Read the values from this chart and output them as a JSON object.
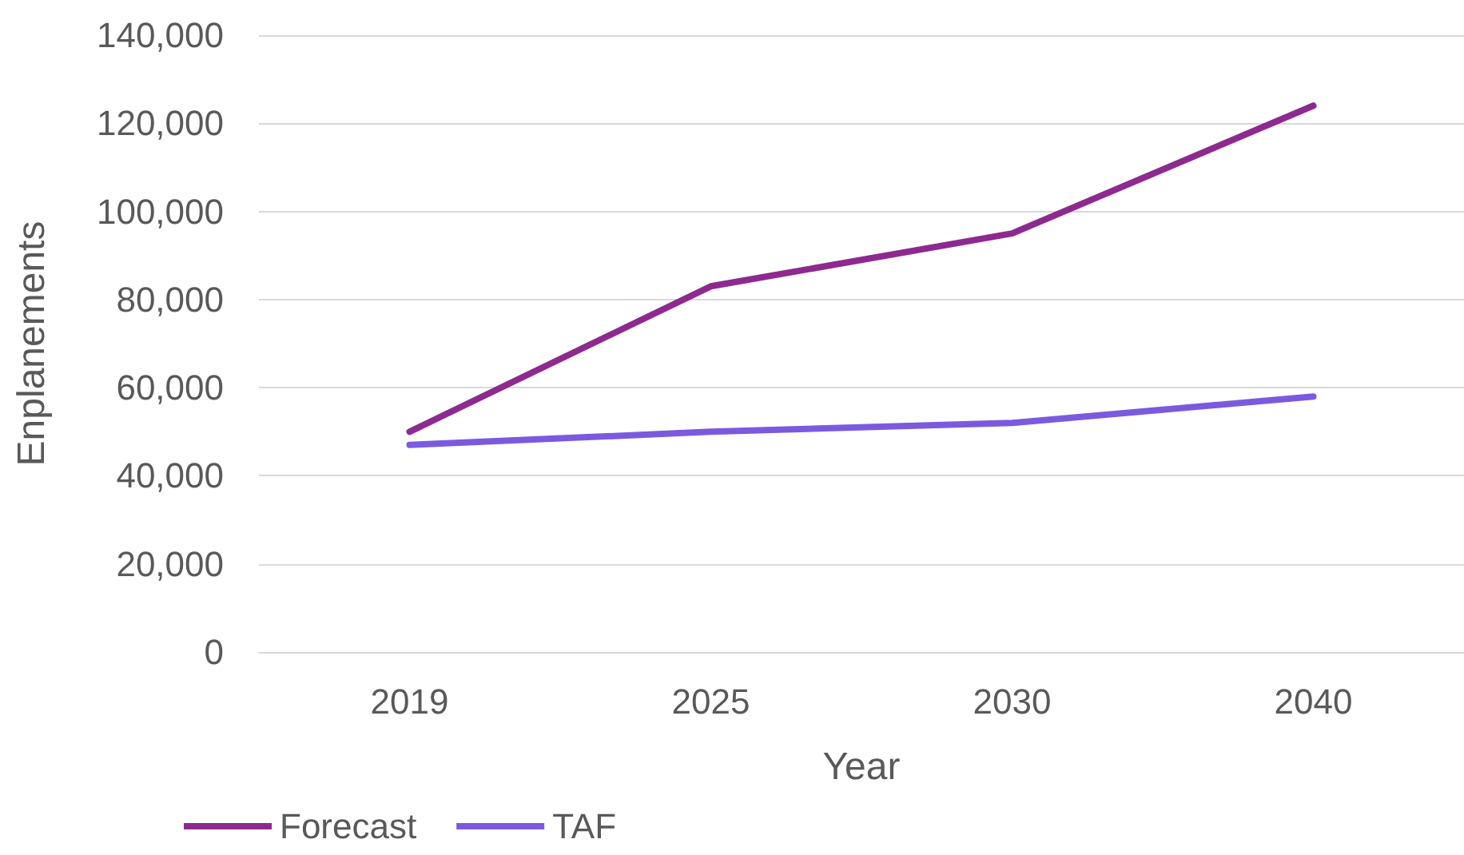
{
  "chart_data": {
    "type": "line",
    "xlabel": "Year",
    "ylabel": "Enplanements",
    "categories": [
      "2019",
      "2025",
      "2030",
      "2040"
    ],
    "series": [
      {
        "name": "Forecast",
        "color": "#8e2a8f",
        "values": [
          50000,
          83000,
          95000,
          124000
        ]
      },
      {
        "name": "TAF",
        "color": "#7b5ae0",
        "values": [
          47000,
          50000,
          52000,
          58000
        ]
      }
    ],
    "ylim": [
      0,
      140000
    ],
    "yticks": [
      0,
      {
        "value": 20000,
        "label": "20,000"
      },
      {
        "value": 40000,
        "label": "40,000"
      },
      {
        "value": 60000,
        "label": "60,000"
      },
      {
        "value": 80000,
        "label": "80,000"
      },
      {
        "value": 100000,
        "label": "100,000"
      },
      {
        "value": 120000,
        "label": "120,000"
      },
      {
        "value": 140000,
        "label": "140,000"
      }
    ],
    "grid": "y",
    "legend": "bottom left",
    "marker": "none",
    "line_style": "solid"
  }
}
